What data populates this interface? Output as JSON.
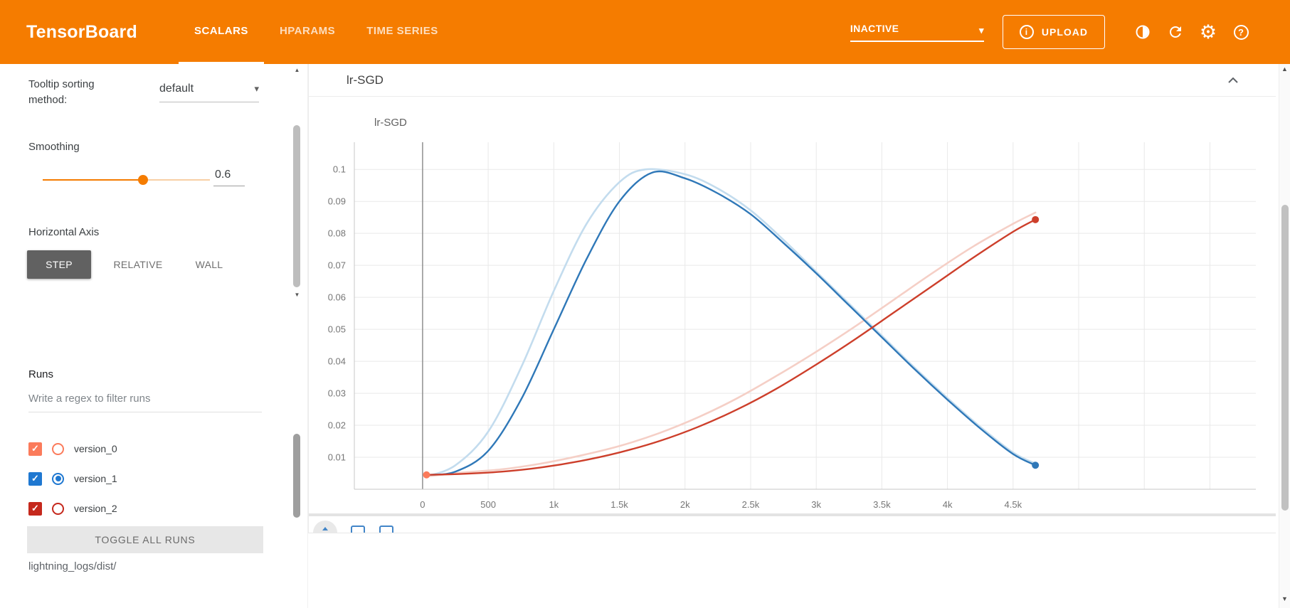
{
  "icons": {
    "caret_down": "▾",
    "scroll_up": "▲",
    "scroll_down": "▼",
    "gear": "⚙",
    "info": "i",
    "help": "?",
    "check": "✓"
  },
  "topbar": {
    "logo": "TensorBoard",
    "tabs": [
      {
        "label": "SCALARS",
        "active": true
      },
      {
        "label": "HPARAMS",
        "active": false
      },
      {
        "label": "TIME SERIES",
        "active": false
      }
    ],
    "status": "INACTIVE",
    "upload": "UPLOAD",
    "bar_color": "#f57c00"
  },
  "sidebar": {
    "tooltip_sorting_label": "Tooltip sorting method:",
    "tooltip_sorting_value": "default",
    "smoothing_label": "Smoothing",
    "smoothing_value": "0.6",
    "horizontal_axis_label": "Horizontal Axis",
    "axis_options": [
      {
        "label": "STEP",
        "active": true
      },
      {
        "label": "RELATIVE",
        "active": false
      },
      {
        "label": "WALL",
        "active": false
      }
    ],
    "runs_label": "Runs",
    "runs_filter_placeholder": "Write a regex to filter runs",
    "runs": [
      {
        "name": "version_0",
        "color": "#fb7b5b",
        "checked": true,
        "selected": false
      },
      {
        "name": "version_1",
        "color": "#1f78d1",
        "checked": true,
        "selected": true
      },
      {
        "name": "version_2",
        "color": "#c5281c",
        "checked": true,
        "selected": false
      }
    ],
    "toggle_all": "TOGGLE ALL RUNS",
    "logdir": "lightning_logs/dist/"
  },
  "main": {
    "card_title": "lr-SGD",
    "chart_data": {
      "type": "line",
      "title": "lr-SGD",
      "xlim": [
        -520,
        6350
      ],
      "ylim": [
        0,
        0.1085
      ],
      "x_ticks": [
        0,
        500,
        1000,
        1500,
        2000,
        2500,
        3000,
        3500,
        4000,
        4500
      ],
      "x_tick_labels": [
        "0",
        "500",
        "1k",
        "1.5k",
        "2k",
        "2.5k",
        "3k",
        "3.5k",
        "4k",
        "4.5k"
      ],
      "x_grid": [
        0,
        500,
        1000,
        1500,
        2000,
        2500,
        3000,
        3500,
        4000,
        4500,
        5000,
        5500,
        6000
      ],
      "y_ticks": [
        0.01,
        0.02,
        0.03,
        0.04,
        0.05,
        0.06,
        0.07,
        0.08,
        0.09,
        0.1
      ],
      "y_tick_labels": [
        "0.01",
        "0.02",
        "0.03",
        "0.04",
        "0.05",
        "0.06",
        "0.07",
        "0.08",
        "0.09",
        "0.1"
      ],
      "grid": true,
      "legend": "none",
      "series": [
        {
          "name": "version_1",
          "color": "#2f78b8",
          "light_color": "#c3dcee",
          "smoothed": [
            [
              30,
              0.0045
            ],
            [
              250,
              0.0055
            ],
            [
              500,
              0.012
            ],
            [
              750,
              0.028
            ],
            [
              1000,
              0.05
            ],
            [
              1250,
              0.072
            ],
            [
              1500,
              0.09
            ],
            [
              1750,
              0.099
            ],
            [
              2000,
              0.0972
            ],
            [
              2250,
              0.0925
            ],
            [
              2500,
              0.086
            ],
            [
              2750,
              0.077
            ],
            [
              3000,
              0.0675
            ],
            [
              3250,
              0.0575
            ],
            [
              3500,
              0.0475
            ],
            [
              3750,
              0.0375
            ],
            [
              4000,
              0.028
            ],
            [
              4250,
              0.019
            ],
            [
              4500,
              0.011
            ],
            [
              4670,
              0.0075
            ]
          ],
          "original": [
            [
              30,
              0.004
            ],
            [
              250,
              0.0075
            ],
            [
              500,
              0.018
            ],
            [
              750,
              0.038
            ],
            [
              1000,
              0.062
            ],
            [
              1250,
              0.083
            ],
            [
              1500,
              0.096
            ],
            [
              1700,
              0.1
            ],
            [
              2000,
              0.0985
            ],
            [
              2250,
              0.094
            ],
            [
              2500,
              0.0872
            ],
            [
              2750,
              0.078
            ],
            [
              3000,
              0.068
            ],
            [
              3250,
              0.058
            ],
            [
              3500,
              0.048
            ],
            [
              3750,
              0.038
            ],
            [
              4000,
              0.0285
            ],
            [
              4250,
              0.0195
            ],
            [
              4500,
              0.0115
            ],
            [
              4670,
              0.008
            ]
          ]
        },
        {
          "name": "version_2",
          "color": "#cd3f2b",
          "light_color": "#f5cfc6",
          "smoothed": [
            [
              30,
              0.0045
            ],
            [
              300,
              0.0048
            ],
            [
              600,
              0.0055
            ],
            [
              900,
              0.0068
            ],
            [
              1200,
              0.0088
            ],
            [
              1500,
              0.0115
            ],
            [
              1800,
              0.015
            ],
            [
              2100,
              0.0195
            ],
            [
              2400,
              0.025
            ],
            [
              2700,
              0.0315
            ],
            [
              3000,
              0.039
            ],
            [
              3300,
              0.047
            ],
            [
              3600,
              0.0555
            ],
            [
              3900,
              0.064
            ],
            [
              4200,
              0.0725
            ],
            [
              4500,
              0.0805
            ],
            [
              4670,
              0.0843
            ]
          ],
          "original": [
            [
              30,
              0.004
            ],
            [
              300,
              0.0052
            ],
            [
              600,
              0.0062
            ],
            [
              900,
              0.008
            ],
            [
              1200,
              0.0105
            ],
            [
              1500,
              0.0135
            ],
            [
              1800,
              0.0175
            ],
            [
              2100,
              0.0225
            ],
            [
              2400,
              0.0285
            ],
            [
              2700,
              0.0355
            ],
            [
              3000,
              0.043
            ],
            [
              3300,
              0.051
            ],
            [
              3600,
              0.0595
            ],
            [
              3900,
              0.068
            ],
            [
              4200,
              0.076
            ],
            [
              4500,
              0.083
            ],
            [
              4670,
              0.0865
            ]
          ]
        },
        {
          "name": "version_0",
          "color": "#fb7b5b",
          "smoothed": [
            [
              30,
              0.0045
            ]
          ]
        }
      ],
      "markers": [
        {
          "x": 30,
          "y": 0.0045,
          "color": "#fb7b5b"
        },
        {
          "x": 4670,
          "y": 0.0075,
          "color": "#2f78b8"
        },
        {
          "x": 4670,
          "y": 0.0843,
          "color": "#cd3f2b"
        }
      ]
    }
  }
}
